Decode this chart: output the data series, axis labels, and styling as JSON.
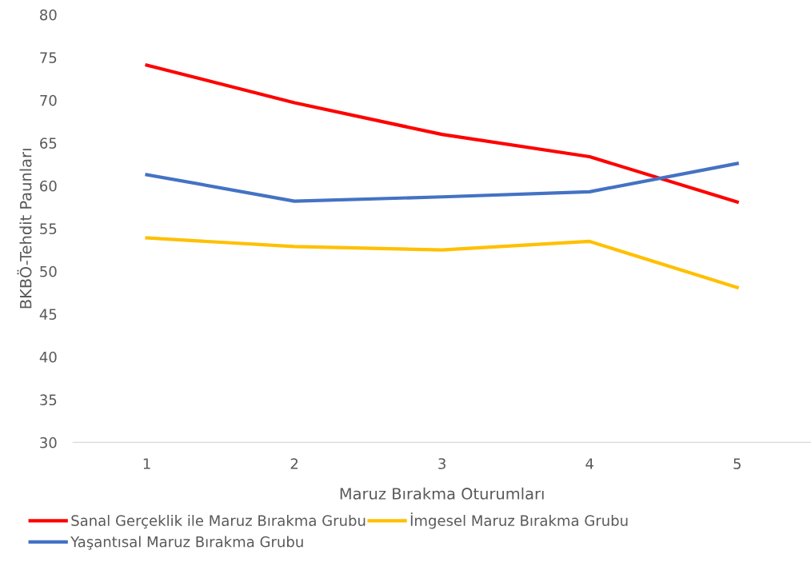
{
  "chart_data": {
    "type": "line",
    "xlabel": "Maruz Bırakma Oturumları",
    "ylabel": "BKBÖ-Tehdit Paunları",
    "categories": [
      "1",
      "2",
      "3",
      "4",
      "5"
    ],
    "series": [
      {
        "name": "Sanal Gerçeklik ile Maruz Bırakma Grubu",
        "color": "#ff0000",
        "values": [
          74.1,
          69.7,
          66.0,
          63.4,
          58.1
        ]
      },
      {
        "name": "Yaşantısal Maruz Bırakma Grubu",
        "color": "#4472c4",
        "values": [
          61.3,
          58.2,
          58.7,
          59.3,
          62.6
        ]
      },
      {
        "name": "İmgesel Maruz Bırakma Grubu",
        "color": "#ffc000",
        "values": [
          53.9,
          52.9,
          52.5,
          53.5,
          48.1
        ]
      }
    ],
    "ylim": [
      30,
      80
    ],
    "yticks": [
      30,
      35,
      40,
      45,
      50,
      55,
      60,
      65,
      70,
      75,
      80
    ],
    "grid": false,
    "legend": "bottom",
    "marker": "none",
    "line_style": "solid"
  }
}
